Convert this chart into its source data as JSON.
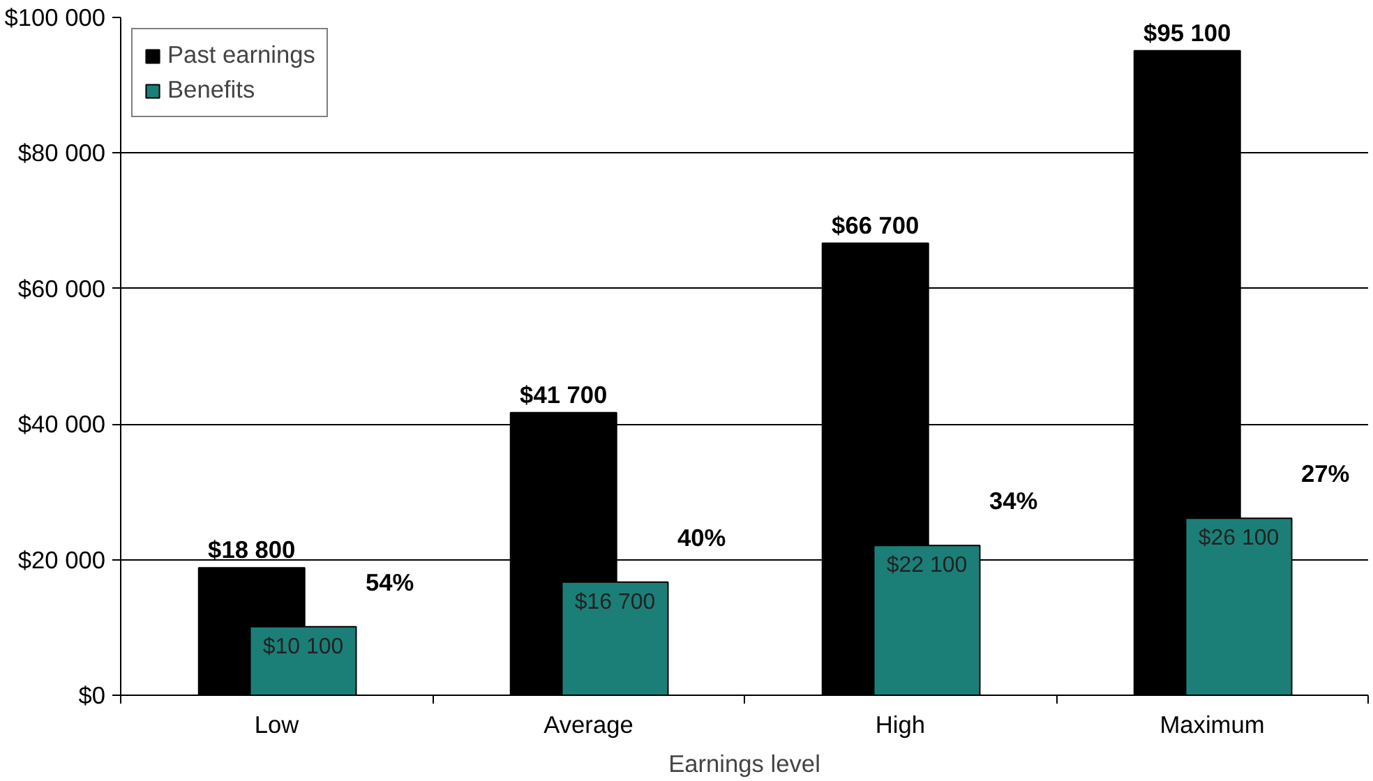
{
  "chart_data": {
    "type": "bar",
    "xlabel": "Earnings level",
    "categories": [
      "Low",
      "Average",
      "High",
      "Maximum"
    ],
    "series": [
      {
        "name": "Past earnings",
        "color": "#000000",
        "values": [
          18800,
          41700,
          66700,
          95100
        ],
        "value_labels": [
          "$18 800",
          "$41 700",
          "$66 700",
          "$95 100"
        ]
      },
      {
        "name": "Benefits",
        "color": "#1b7f78",
        "values": [
          10100,
          16700,
          22100,
          26100
        ],
        "value_labels": [
          "$10 100",
          "$16 700",
          "$22 100",
          "$26 100"
        ]
      }
    ],
    "ylim": [
      0,
      100000
    ],
    "yticks": [
      {
        "value": 0,
        "label": "$0"
      },
      {
        "value": 20000,
        "label": "$20 000"
      },
      {
        "value": 40000,
        "label": "$40 000"
      },
      {
        "value": 60000,
        "label": "$60 000"
      },
      {
        "value": 80000,
        "label": "$80 000"
      },
      {
        "value": 100000,
        "label": "$100 000"
      }
    ],
    "annotations": [
      "54%",
      "40%",
      "34%",
      "27%"
    ],
    "grid": "y",
    "legend": "top left"
  }
}
